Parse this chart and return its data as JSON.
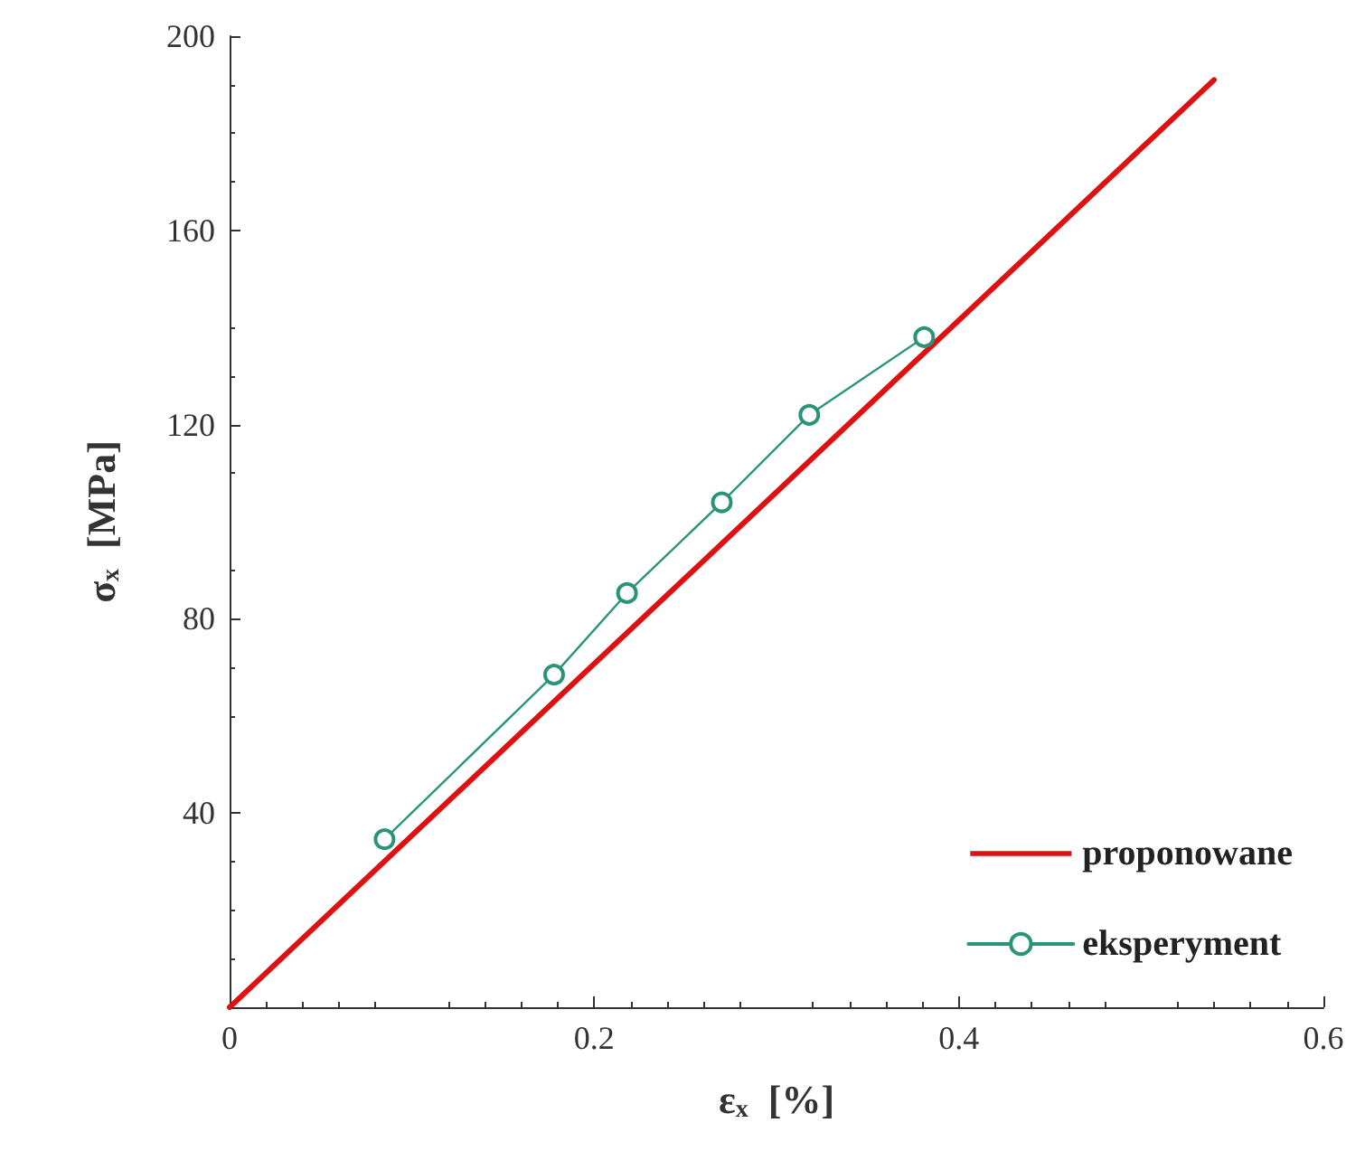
{
  "chart_data": {
    "type": "line",
    "xlabel": "ε$_{x}$  [%]",
    "ylabel": "σ$_{x}$  [MPa]",
    "xlim": [
      0,
      0.6
    ],
    "xticks": [
      0,
      0.2,
      0.4,
      0.6
    ],
    "ylim": [
      0,
      200
    ],
    "yticks": [
      {
        "value": 0,
        "label": null
      },
      40,
      80,
      120,
      160,
      200
    ],
    "grid": false,
    "legend": "bottom right",
    "series": [
      {
        "name": "proponowane",
        "color": "#dd1111",
        "x": [
          0,
          0.54
        ],
        "values": [
          0,
          191
        ],
        "marker": "none"
      },
      {
        "name": "eksperyment",
        "color": "#2a9478",
        "x": [
          0.085,
          0.178,
          0.218,
          0.27,
          0.318,
          0.381
        ],
        "values": [
          34.6,
          68.5,
          85.3,
          104,
          122,
          138
        ],
        "marker": "circle"
      }
    ]
  }
}
